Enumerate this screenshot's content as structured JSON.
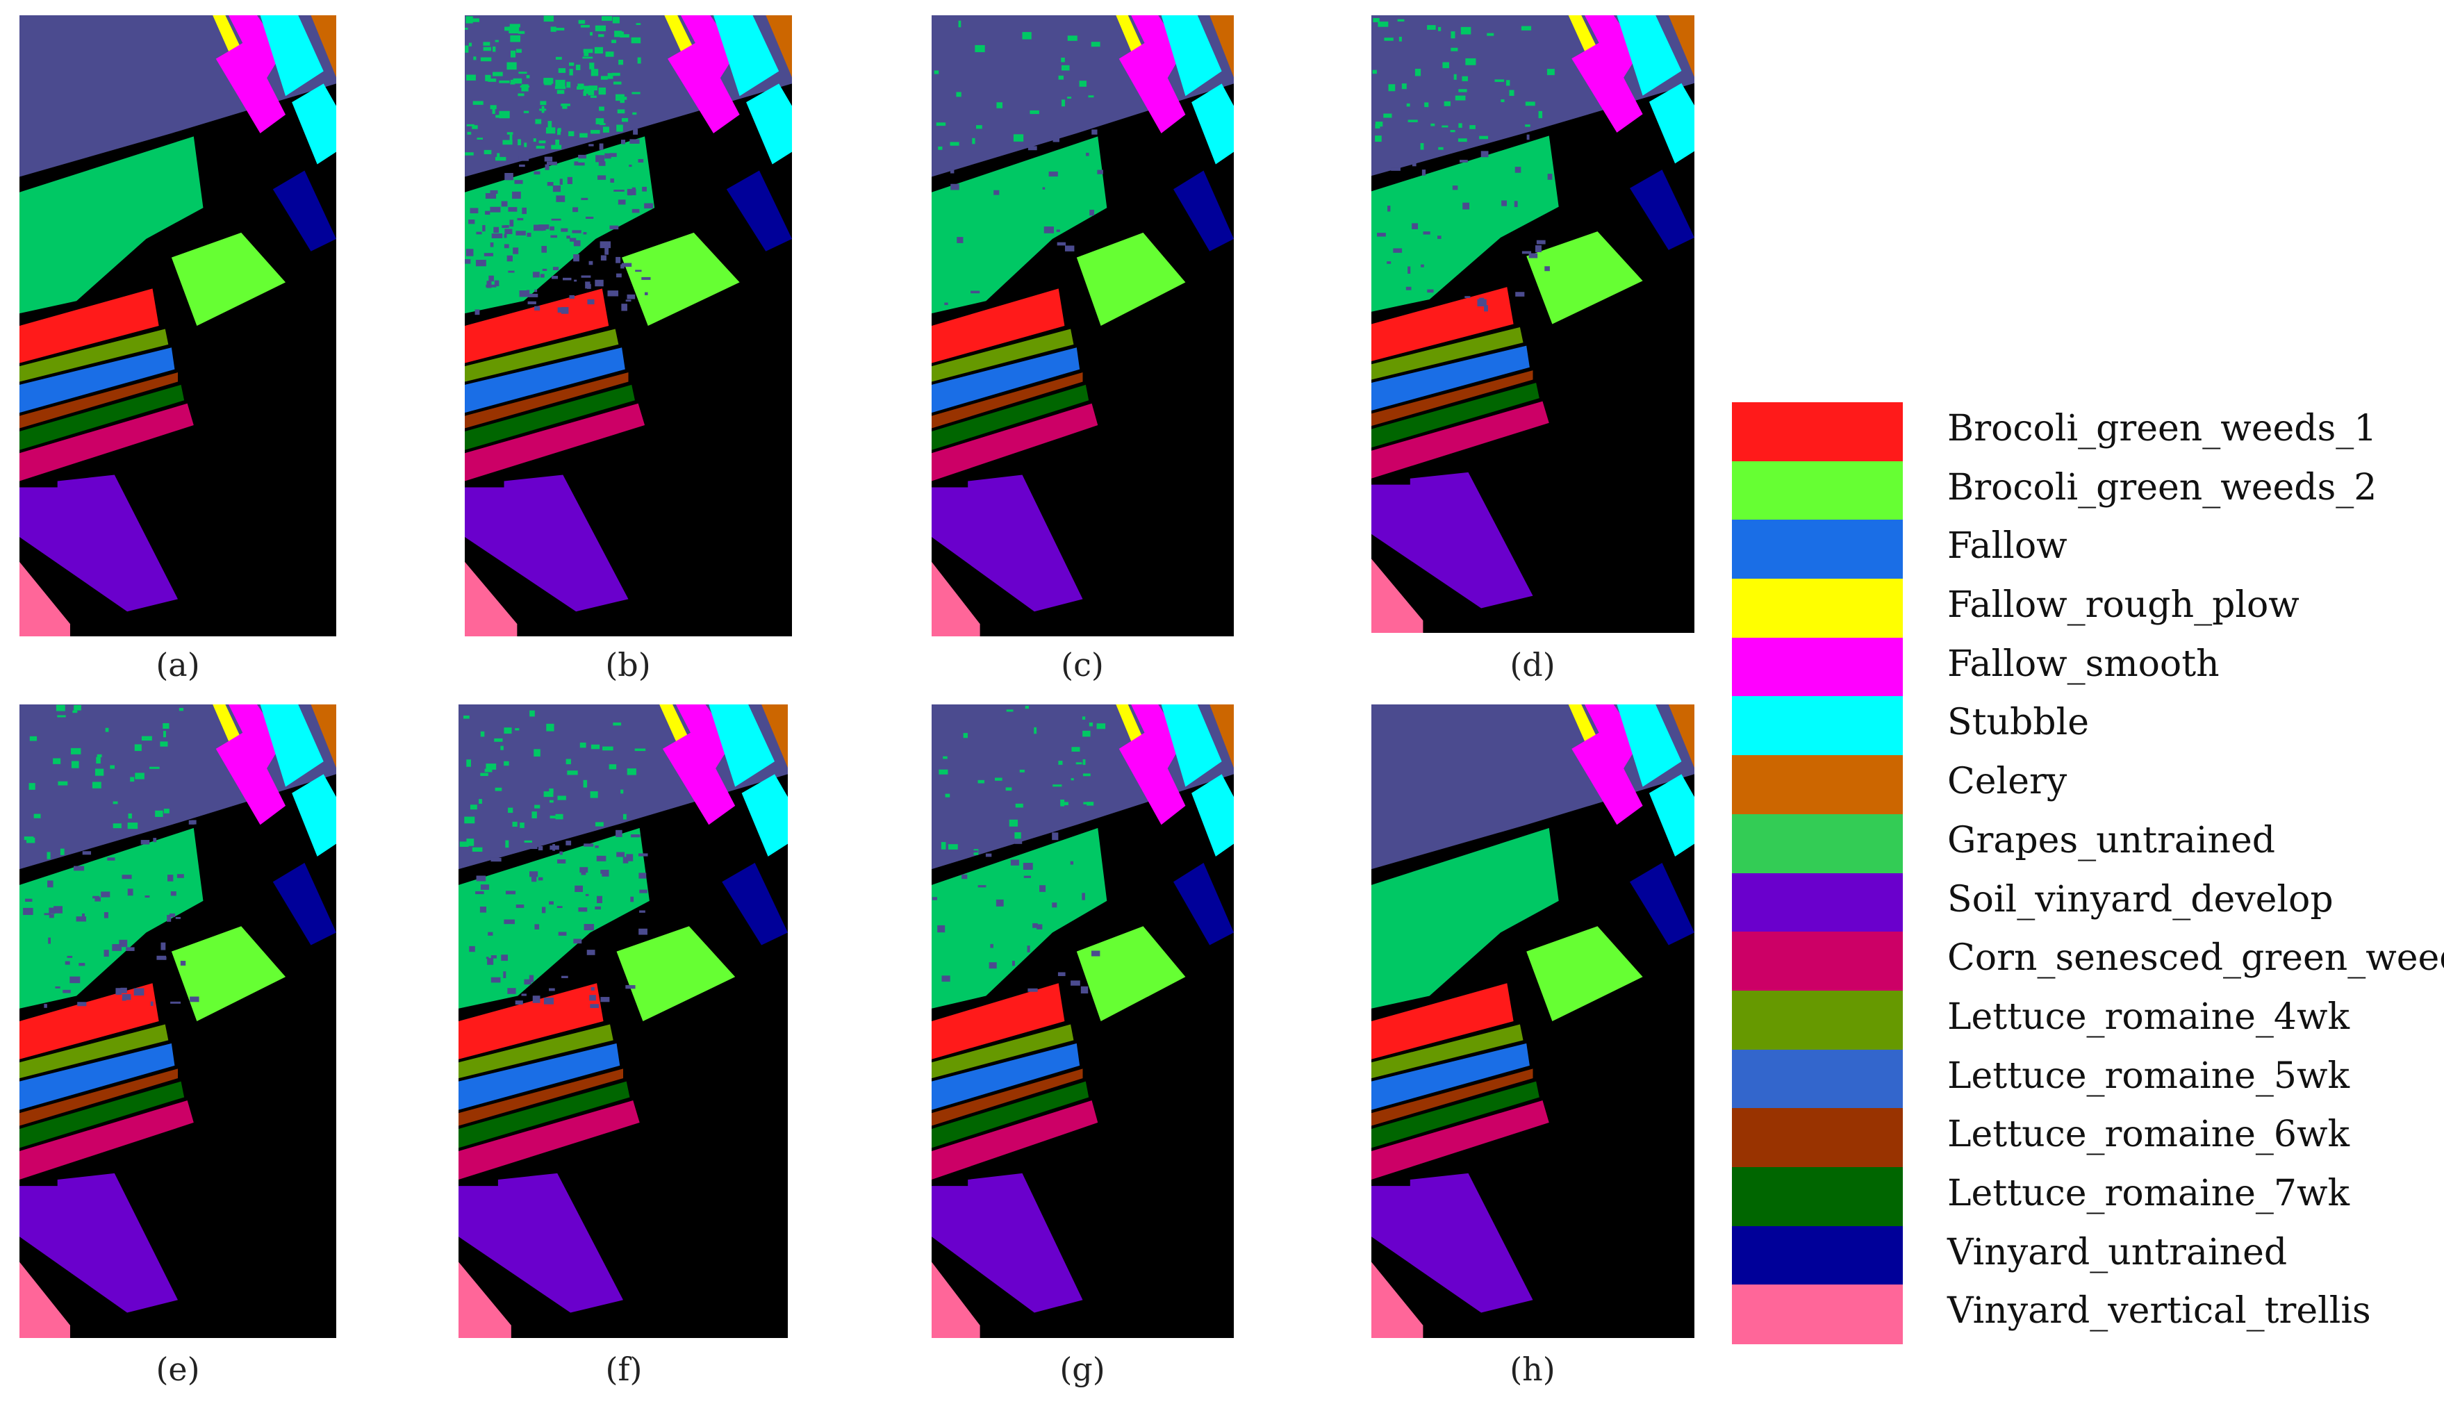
{
  "panels": [
    {
      "id": "a",
      "caption": "(a)"
    },
    {
      "id": "b",
      "caption": "(b)"
    },
    {
      "id": "c",
      "caption": "(c)"
    },
    {
      "id": "d",
      "caption": "(d)"
    },
    {
      "id": "e",
      "caption": "(e)"
    },
    {
      "id": "f",
      "caption": "(f)"
    },
    {
      "id": "g",
      "caption": "(g)"
    },
    {
      "id": "h",
      "caption": "(h)"
    }
  ],
  "legend": [
    {
      "label": "Brocoli_green_weeds_1",
      "color": "#ff1a1a"
    },
    {
      "label": "Brocoli_green_weeds_2",
      "color": "#66ff33"
    },
    {
      "label": "Fallow",
      "color": "#1a6ee6"
    },
    {
      "label": "Fallow_rough_plow",
      "color": "#ffff00"
    },
    {
      "label": "Fallow_smooth",
      "color": "#ff00ff"
    },
    {
      "label": "Stubble",
      "color": "#00ffff"
    },
    {
      "label": "Celery",
      "color": "#cc6600"
    },
    {
      "label": "Grapes_untrained",
      "color": "#33cc55"
    },
    {
      "label": "Soil_vinyard_develop",
      "color": "#6a00cc"
    },
    {
      "label": "Corn_senesced_green_weeds",
      "color": "#cc0066"
    },
    {
      "label": "Lettuce_romaine_4wk",
      "color": "#669900"
    },
    {
      "label": "Lettuce_romaine_5wk",
      "color": "#3366cc"
    },
    {
      "label": "Lettuce_romaine_6wk",
      "color": "#993300"
    },
    {
      "label": "Lettuce_romaine_7wk",
      "color": "#006600"
    },
    {
      "label": "Vinyard_untrained",
      "color": "#000099"
    },
    {
      "label": "Vinyard_vertical_trellis",
      "color": "#ff6699"
    }
  ]
}
